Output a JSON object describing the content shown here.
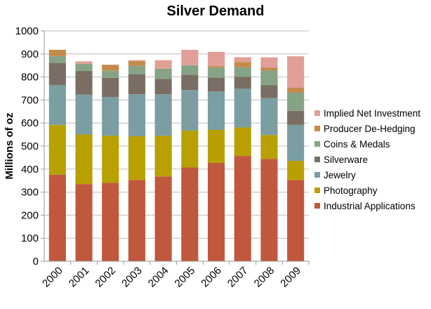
{
  "chart_data": {
    "type": "bar",
    "stacked": true,
    "title": "Silver Demand",
    "xlabel": "",
    "ylabel": "Millions of oz",
    "ylim": [
      0,
      1000
    ],
    "yticks": [
      0,
      100,
      200,
      300,
      400,
      500,
      600,
      700,
      800,
      900,
      1000
    ],
    "grid": true,
    "legend_position": "right",
    "categories": [
      "2000",
      "2001",
      "2002",
      "2003",
      "2004",
      "2005",
      "2006",
      "2007",
      "2008",
      "2009"
    ],
    "series": [
      {
        "name": "Industrial Applications",
        "color": "#C0583E",
        "values": [
          376,
          335,
          341,
          353,
          368,
          407,
          427,
          457,
          444,
          353
        ]
      },
      {
        "name": "Photography",
        "color": "#B8A000",
        "values": [
          216,
          215,
          204,
          190,
          177,
          161,
          143,
          124,
          104,
          83
        ]
      },
      {
        "name": "Jewelry",
        "color": "#7A9EA2",
        "values": [
          172,
          174,
          168,
          182,
          180,
          175,
          167,
          168,
          160,
          156
        ]
      },
      {
        "name": "Silverware",
        "color": "#7A6E64",
        "values": [
          97,
          102,
          83,
          87,
          67,
          67,
          60,
          52,
          57,
          61
        ]
      },
      {
        "name": "Coins & Medals",
        "color": "#86A386",
        "values": [
          30,
          31,
          31,
          36,
          44,
          41,
          44,
          41,
          63,
          79
        ]
      },
      {
        "name": "Producer De-Hedging",
        "color": "#C48A4A",
        "values": [
          27,
          0,
          26,
          21,
          0,
          0,
          6,
          23,
          13,
          21
        ]
      },
      {
        "name": "Implied Net Investment",
        "color": "#E0A098",
        "values": [
          0,
          11,
          0,
          4,
          37,
          67,
          62,
          21,
          44,
          137
        ]
      }
    ],
    "legend_order": [
      "Implied Net Investment",
      "Producer De-Hedging",
      "Coins & Medals",
      "Silverware",
      "Jewelry",
      "Photography",
      "Industrial Applications"
    ]
  }
}
